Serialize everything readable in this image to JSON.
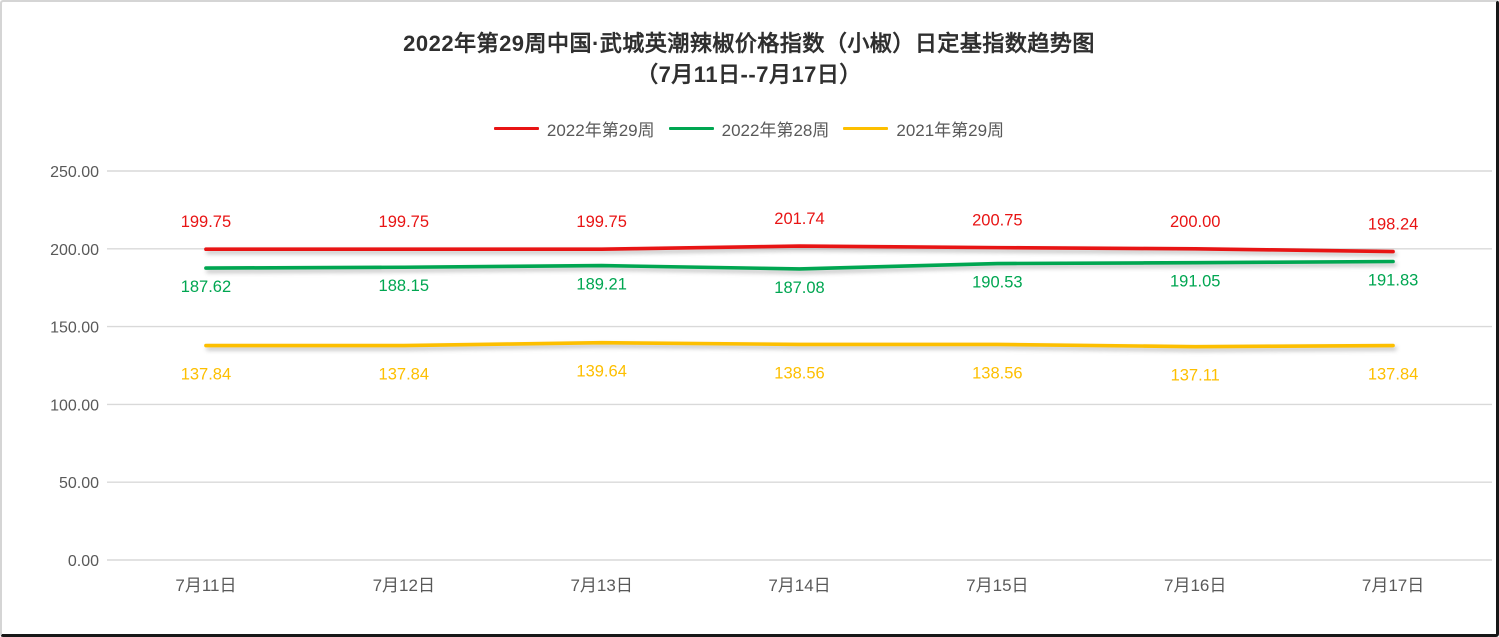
{
  "title": {
    "line1": "2022年第29周中国·武城英潮辣椒价格指数（小椒）日定基指数趋势图",
    "line2": "（7月11日--7月17日）"
  },
  "colors": {
    "series_red": "#e81414",
    "series_green": "#00a651",
    "series_gold": "#fdbf00",
    "gridline": "#d9d9d9",
    "axis_text": "#595959",
    "title_text": "#2f2f2f",
    "legend_text": "#595959"
  },
  "chart_data": {
    "type": "line",
    "title": "2022年第29周中国·武城英潮辣椒价格指数（小椒）日定基指数趋势图（7月11日--7月17日）",
    "categories": [
      "7月11日",
      "7月12日",
      "7月13日",
      "7月14日",
      "7月15日",
      "7月16日",
      "7月17日"
    ],
    "series": [
      {
        "name": "2022年第29周",
        "color": "#e81414",
        "values": [
          199.75,
          199.75,
          199.75,
          201.74,
          200.75,
          200.0,
          198.24
        ],
        "label_position": "above",
        "label_dy": -22
      },
      {
        "name": "2022年第28周",
        "color": "#00a651",
        "values": [
          187.62,
          188.15,
          189.21,
          187.08,
          190.53,
          191.05,
          191.83
        ],
        "label_position": "below",
        "label_dy": 24
      },
      {
        "name": "2021年第29周",
        "color": "#fdbf00",
        "values": [
          137.84,
          137.84,
          139.64,
          138.56,
          138.56,
          137.11,
          137.84
        ],
        "label_position": "below",
        "label_dy": 34
      }
    ],
    "xlabel": "",
    "ylabel": "",
    "ylim": [
      0,
      250
    ],
    "ytick_step": 50,
    "ytick_labels": [
      "0.00",
      "50.00",
      "100.00",
      "150.00",
      "200.00",
      "250.00"
    ],
    "grid": true,
    "legend_position": "top",
    "data_labels": true,
    "value_format_decimals": 2
  }
}
